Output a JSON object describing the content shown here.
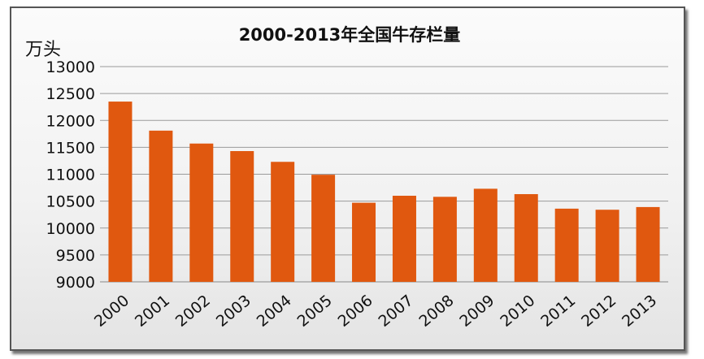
{
  "chart_data": {
    "type": "bar",
    "title": "2000-2013年全国牛存栏量",
    "unit_label": "万头",
    "categories": [
      "2000",
      "2001",
      "2002",
      "2003",
      "2004",
      "2005",
      "2006",
      "2007",
      "2008",
      "2009",
      "2010",
      "2011",
      "2012",
      "2013"
    ],
    "values": [
      12350,
      11810,
      11570,
      11430,
      11230,
      10990,
      10470,
      10600,
      10580,
      10730,
      10630,
      10360,
      10340,
      10390
    ],
    "ylim": [
      9000,
      13000
    ],
    "yticks": [
      9000,
      9500,
      10000,
      10500,
      11000,
      11500,
      12000,
      12500,
      13000
    ],
    "grid": true,
    "bar_color": "#e0580f"
  }
}
